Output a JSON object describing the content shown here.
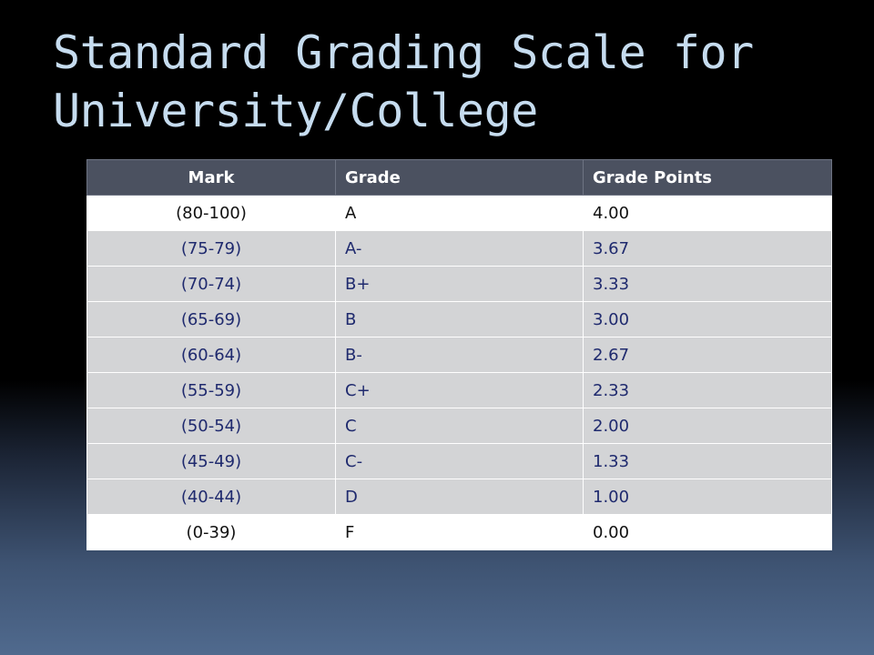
{
  "slide": {
    "title_line1": "Standard Grading Scale for",
    "title_line2": "University/College"
  },
  "table": {
    "headers": [
      "Mark",
      "Grade",
      "Grade Points"
    ],
    "rows": [
      {
        "mark": "(80-100)",
        "grade": "A",
        "points": "4.00"
      },
      {
        "mark": "(75-79)",
        "grade": "A-",
        "points": "3.67"
      },
      {
        "mark": "(70-74)",
        "grade": "B+",
        "points": "3.33"
      },
      {
        "mark": "(65-69)",
        "grade": "B",
        "points": "3.00"
      },
      {
        "mark": "(60-64)",
        "grade": "B-",
        "points": "2.67"
      },
      {
        "mark": "(55-59)",
        "grade": "C+",
        "points": "2.33"
      },
      {
        "mark": "(50-54)",
        "grade": "C",
        "points": "2.00"
      },
      {
        "mark": "(45-49)",
        "grade": "C-",
        "points": "1.33"
      },
      {
        "mark": "(40-44)",
        "grade": "D",
        "points": "1.00"
      },
      {
        "mark": "(0-39)",
        "grade": "F",
        "points": "0.00"
      }
    ]
  },
  "colors": {
    "title_text": "#c6dcef",
    "header_bg": "#4b5160",
    "band_row_bg": "#d3d4d6",
    "band_row_text": "#1f2a6e",
    "plain_row_bg": "#ffffff"
  }
}
